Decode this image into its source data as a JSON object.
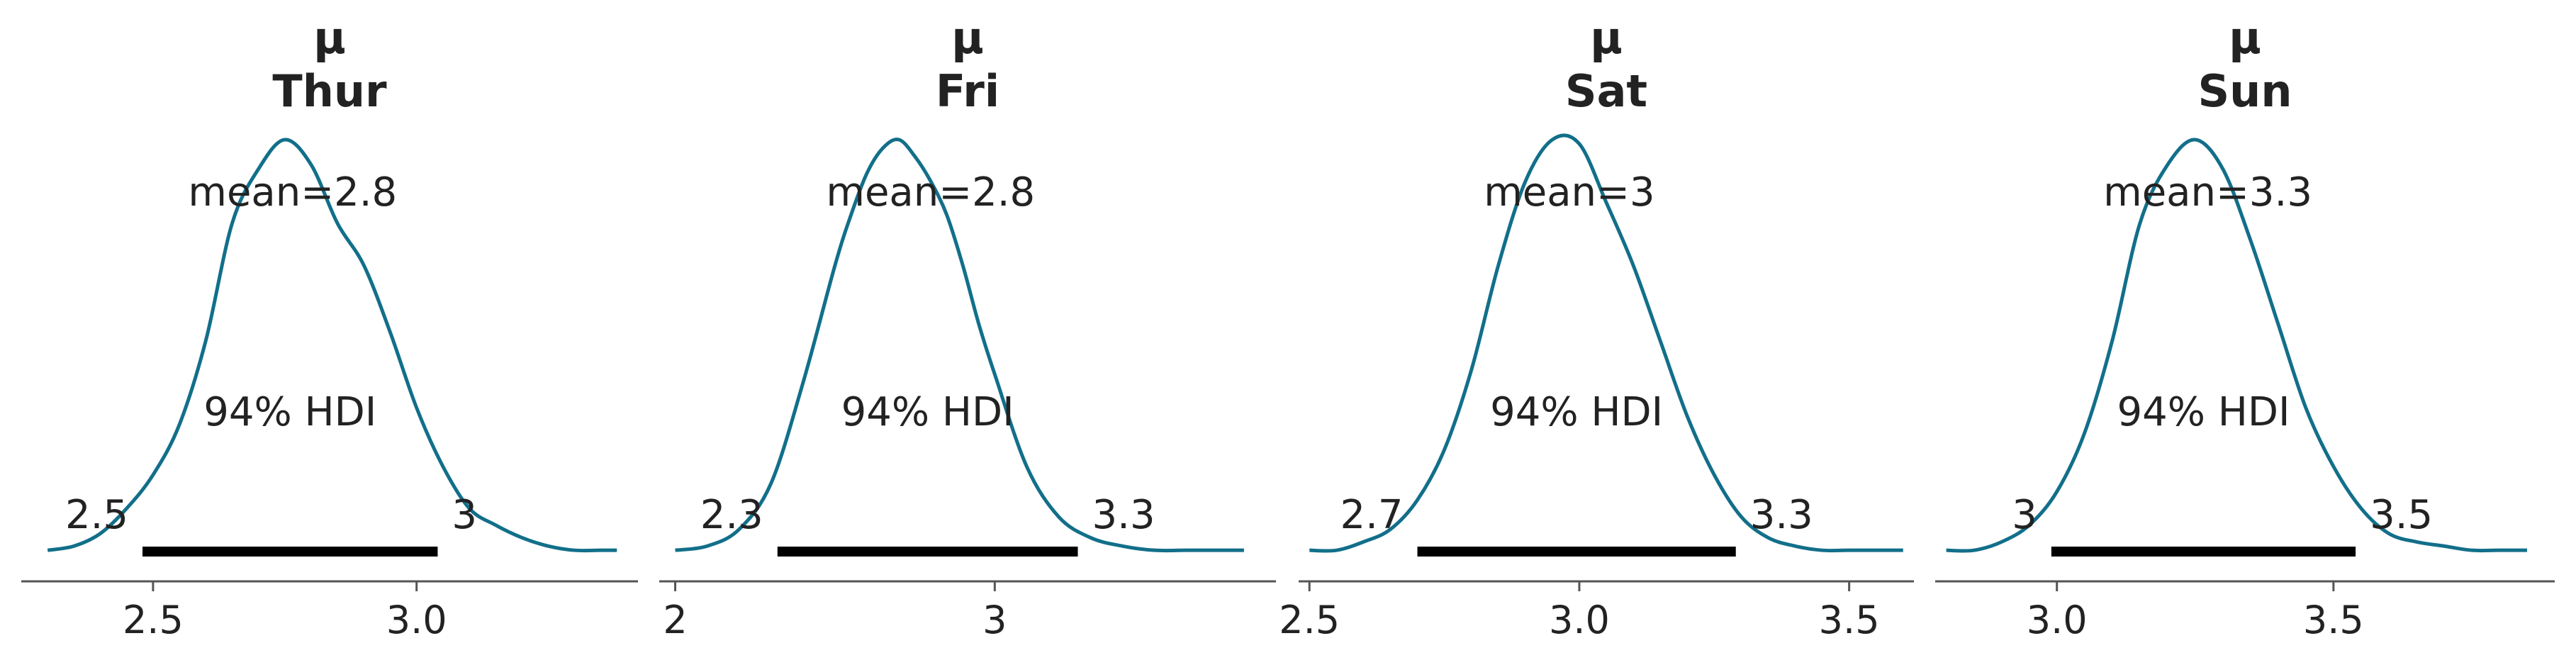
{
  "chart_data": [
    {
      "type": "area",
      "title_line1": "μ",
      "title_line2": "Thur",
      "mean_label": "mean=2.8",
      "hdi_label": "94% HDI",
      "hdi_low": 2.48,
      "hdi_high": 3.04,
      "hdi_low_label": "2.5",
      "hdi_high_label": "3",
      "xlim": [
        2.25,
        3.42
      ],
      "ticks": [
        2.5,
        3.0
      ],
      "tick_labels": [
        "2.5",
        "3.0"
      ],
      "x": [
        2.3,
        2.35,
        2.4,
        2.45,
        2.5,
        2.55,
        2.6,
        2.65,
        2.7,
        2.75,
        2.8,
        2.85,
        2.9,
        2.95,
        3.0,
        3.05,
        3.1,
        3.15,
        3.2,
        3.25,
        3.3,
        3.35,
        3.38
      ],
      "density": [
        0.02,
        0.03,
        0.06,
        0.12,
        0.2,
        0.32,
        0.52,
        0.8,
        0.93,
        1.0,
        0.94,
        0.8,
        0.7,
        0.54,
        0.36,
        0.22,
        0.12,
        0.08,
        0.05,
        0.03,
        0.02,
        0.02,
        0.02
      ]
    },
    {
      "type": "area",
      "title_line1": "μ",
      "title_line2": "Fri",
      "mean_label": "mean=2.8",
      "hdi_label": "94% HDI",
      "hdi_low": 2.32,
      "hdi_high": 3.26,
      "hdi_low_label": "2.3",
      "hdi_high_label": "3.3",
      "xlim": [
        1.95,
        3.88
      ],
      "ticks": [
        2.0,
        3.0
      ],
      "tick_labels": [
        "2",
        "3"
      ],
      "x": [
        2.0,
        2.1,
        2.2,
        2.3,
        2.4,
        2.5,
        2.55,
        2.6,
        2.65,
        2.7,
        2.75,
        2.8,
        2.85,
        2.9,
        2.95,
        3.0,
        3.1,
        3.2,
        3.3,
        3.4,
        3.5,
        3.6,
        3.7,
        3.78
      ],
      "density": [
        0.02,
        0.03,
        0.07,
        0.18,
        0.42,
        0.7,
        0.82,
        0.92,
        0.98,
        1.0,
        0.96,
        0.9,
        0.82,
        0.7,
        0.56,
        0.44,
        0.22,
        0.1,
        0.05,
        0.03,
        0.02,
        0.02,
        0.02,
        0.02
      ]
    },
    {
      "type": "area",
      "title_line1": "μ",
      "title_line2": "Sat",
      "mean_label": "mean=3",
      "hdi_label": "94% HDI",
      "hdi_low": 2.7,
      "hdi_high": 3.29,
      "hdi_low_label": "2.7",
      "hdi_high_label": "3.3",
      "xlim": [
        2.48,
        3.62
      ],
      "ticks": [
        2.5,
        3.0,
        3.5
      ],
      "tick_labels": [
        "2.5",
        "3.0",
        "3.5"
      ],
      "x": [
        2.5,
        2.55,
        2.6,
        2.65,
        2.7,
        2.75,
        2.8,
        2.85,
        2.9,
        2.95,
        3.0,
        3.05,
        3.1,
        3.15,
        3.2,
        3.25,
        3.3,
        3.35,
        3.4,
        3.45,
        3.5,
        3.55,
        3.6
      ],
      "density": [
        0.02,
        0.02,
        0.04,
        0.07,
        0.14,
        0.26,
        0.45,
        0.7,
        0.9,
        1.0,
        0.99,
        0.85,
        0.7,
        0.52,
        0.34,
        0.2,
        0.1,
        0.05,
        0.03,
        0.02,
        0.02,
        0.02,
        0.02
      ]
    },
    {
      "type": "area",
      "title_line1": "μ",
      "title_line2": "Sun",
      "mean_label": "mean=3.3",
      "hdi_label": "94% HDI",
      "hdi_low": 2.99,
      "hdi_high": 3.54,
      "hdi_low_label": "3",
      "hdi_high_label": "3.5",
      "xlim": [
        2.78,
        3.9
      ],
      "ticks": [
        3.0,
        3.5
      ],
      "tick_labels": [
        "3.0",
        "3.5"
      ],
      "x": [
        2.8,
        2.85,
        2.9,
        2.95,
        3.0,
        3.05,
        3.1,
        3.15,
        3.2,
        3.25,
        3.3,
        3.35,
        3.4,
        3.45,
        3.5,
        3.55,
        3.6,
        3.65,
        3.7,
        3.75,
        3.8,
        3.85
      ],
      "density": [
        0.02,
        0.02,
        0.04,
        0.08,
        0.16,
        0.3,
        0.52,
        0.8,
        0.94,
        1.0,
        0.93,
        0.76,
        0.56,
        0.36,
        0.22,
        0.12,
        0.06,
        0.04,
        0.03,
        0.02,
        0.02,
        0.02
      ]
    }
  ],
  "colors": {
    "curve": "#126f8a",
    "hdi_bar": "#000000",
    "text": "#222222",
    "axis": "#555555"
  }
}
